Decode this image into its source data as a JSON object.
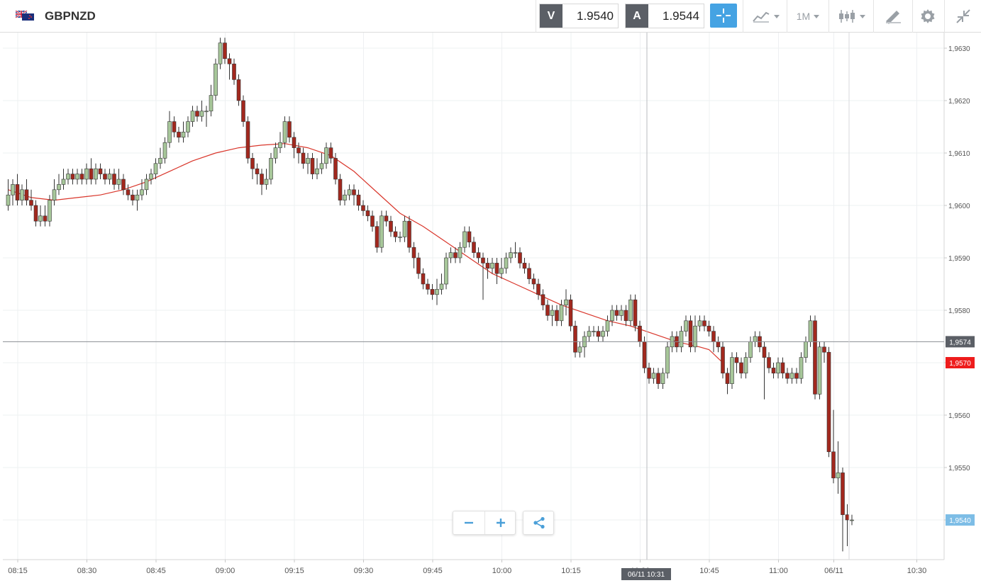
{
  "header": {
    "symbol": "GBPNZD",
    "sell_tag": "V",
    "sell_price": "1.9540",
    "buy_tag": "A",
    "buy_price": "1.9544",
    "timeframe": "1M",
    "icons": [
      "gb-nz-flag-icon",
      "crosshair-icon",
      "indicators-icon",
      "timeframe-caret-icon",
      "candlestick-type-icon",
      "draw-tools-icon",
      "settings-icon",
      "fullscreen-icon"
    ]
  },
  "controls": {
    "icons": [
      "zoom-out-icon",
      "zoom-in-icon",
      "share-icon"
    ]
  },
  "colors": {
    "up_body": "#a7c79a",
    "down_body": "#a2281e",
    "wick": "#333333",
    "ma_line": "#d9362b",
    "crosshair_label_bg": "#5b5f66",
    "ma_label_bg": "#ee1c1c",
    "last_price_label_bg": "#7dbde6",
    "accent": "#45a3e3"
  },
  "chart_data": {
    "type": "candlestick",
    "x_tick_labels": [
      "08:15",
      "08:30",
      "08:45",
      "09:00",
      "09:15",
      "09:30",
      "09:45",
      "10:00",
      "10:15",
      "10:30",
      "10:45",
      "11:00",
      "06/11",
      "10:30"
    ],
    "x_tick_minutes": [
      495,
      510,
      525,
      540,
      555,
      570,
      585,
      600,
      615,
      630,
      645,
      660,
      672,
      690
    ],
    "y_tick_labels": [
      "1,9630",
      "1,9620",
      "1,9610",
      "1,9600",
      "1,9590",
      "1,9580",
      "1,9570",
      "1,9560",
      "1,9550",
      "1,9540"
    ],
    "y_ticks": [
      1.963,
      1.962,
      1.961,
      1.96,
      1.959,
      1.958,
      1.957,
      1.956,
      1.955,
      1.954
    ],
    "ylim": [
      1.9533,
      1.9639
    ],
    "crosshair": {
      "price": 1.9574,
      "price_label": "1,9574",
      "time_label": "06/11 10:31"
    },
    "ma_label": {
      "price": 1.957,
      "text": "1,9570"
    },
    "last_price_label": {
      "price": 1.954,
      "text": "1,9540"
    },
    "ma_series": [
      [
        0,
        1.9603
      ],
      [
        5,
        1.96015
      ],
      [
        10,
        1.9601
      ],
      [
        15,
        1.96015
      ],
      [
        20,
        1.9602
      ],
      [
        25,
        1.9603
      ],
      [
        30,
        1.96045
      ],
      [
        35,
        1.96065
      ],
      [
        40,
        1.96085
      ],
      [
        45,
        1.961
      ],
      [
        50,
        1.9611
      ],
      [
        55,
        1.96115
      ],
      [
        60,
        1.96118
      ],
      [
        65,
        1.9611
      ],
      [
        70,
        1.96095
      ],
      [
        75,
        1.96065
      ],
      [
        80,
        1.96025
      ],
      [
        85,
        1.95985
      ],
      [
        90,
        1.9596
      ],
      [
        95,
        1.9593
      ],
      [
        100,
        1.959
      ],
      [
        105,
        1.9587
      ],
      [
        110,
        1.9585
      ],
      [
        115,
        1.9583
      ],
      [
        120,
        1.9581
      ],
      [
        125,
        1.95795
      ],
      [
        130,
        1.9578
      ],
      [
        135,
        1.9577
      ],
      [
        140,
        1.95755
      ],
      [
        145,
        1.9574
      ],
      [
        150,
        1.9573
      ],
      [
        152,
        1.95725
      ],
      [
        155,
        1.957
      ]
    ],
    "candles": [
      [
        1.96,
        1.9602,
        1.9605,
        1.9599
      ],
      [
        1.9602,
        1.9604,
        1.9605,
        1.96
      ],
      [
        1.9604,
        1.9601,
        1.9606,
        1.96
      ],
      [
        1.9601,
        1.9603,
        1.9604,
        1.96
      ],
      [
        1.9603,
        1.9601,
        1.9605,
        1.96
      ],
      [
        1.9601,
        1.96,
        1.9603,
        1.9599
      ],
      [
        1.96,
        1.9597,
        1.9601,
        1.9596
      ],
      [
        1.9597,
        1.9598,
        1.96,
        1.9596
      ],
      [
        1.9598,
        1.9597,
        1.96,
        1.9596
      ],
      [
        1.9597,
        1.9601,
        1.9602,
        1.9596
      ],
      [
        1.9601,
        1.9603,
        1.9605,
        1.96
      ],
      [
        1.9603,
        1.9604,
        1.9606,
        1.9602
      ],
      [
        1.9604,
        1.9605,
        1.9607,
        1.9603
      ],
      [
        1.9605,
        1.9606,
        1.9607,
        1.9604
      ],
      [
        1.9606,
        1.9605,
        1.9607,
        1.9604
      ],
      [
        1.9605,
        1.9606,
        1.9607,
        1.9604
      ],
      [
        1.9606,
        1.9605,
        1.9607,
        1.9604
      ],
      [
        1.9605,
        1.9607,
        1.9608,
        1.9604
      ],
      [
        1.9607,
        1.9605,
        1.9609,
        1.9604
      ],
      [
        1.9605,
        1.9607,
        1.9608,
        1.9604
      ],
      [
        1.9607,
        1.9606,
        1.9608,
        1.9605
      ],
      [
        1.9606,
        1.9605,
        1.9607,
        1.9604
      ],
      [
        1.9605,
        1.9606,
        1.9607,
        1.9604
      ],
      [
        1.9606,
        1.9604,
        1.9607,
        1.9603
      ],
      [
        1.9604,
        1.9605,
        1.9607,
        1.9603
      ],
      [
        1.9605,
        1.9603,
        1.9606,
        1.9602
      ],
      [
        1.9603,
        1.9602,
        1.9604,
        1.9601
      ],
      [
        1.9602,
        1.9601,
        1.9603,
        1.96
      ],
      [
        1.9601,
        1.9602,
        1.9603,
        1.9599
      ],
      [
        1.9602,
        1.9603,
        1.9605,
        1.9601
      ],
      [
        1.9603,
        1.9605,
        1.9606,
        1.9602
      ],
      [
        1.9605,
        1.9606,
        1.9607,
        1.9604
      ],
      [
        1.9606,
        1.9608,
        1.9609,
        1.9605
      ],
      [
        1.9608,
        1.9609,
        1.9611,
        1.9607
      ],
      [
        1.9609,
        1.9612,
        1.9613,
        1.9608
      ],
      [
        1.9612,
        1.9616,
        1.9618,
        1.9611
      ],
      [
        1.9616,
        1.9614,
        1.9617,
        1.9613
      ],
      [
        1.9614,
        1.9613,
        1.9615,
        1.9612
      ],
      [
        1.9613,
        1.9614,
        1.9616,
        1.9612
      ],
      [
        1.9614,
        1.9616,
        1.9617,
        1.9613
      ],
      [
        1.9616,
        1.9618,
        1.9619,
        1.9615
      ],
      [
        1.9618,
        1.9617,
        1.9619,
        1.9616
      ],
      [
        1.9617,
        1.9618,
        1.962,
        1.9616
      ],
      [
        1.9618,
        1.9618,
        1.9619,
        1.9615
      ],
      [
        1.9618,
        1.9621,
        1.9623,
        1.9617
      ],
      [
        1.9621,
        1.9627,
        1.9628,
        1.962
      ],
      [
        1.9627,
        1.9631,
        1.9632,
        1.9626
      ],
      [
        1.9631,
        1.9628,
        1.9632,
        1.9627
      ],
      [
        1.9628,
        1.9627,
        1.9629,
        1.9624
      ],
      [
        1.9627,
        1.9624,
        1.9628,
        1.9623
      ],
      [
        1.9624,
        1.962,
        1.9625,
        1.9619
      ],
      [
        1.962,
        1.9616,
        1.9621,
        1.9615
      ],
      [
        1.9616,
        1.9609,
        1.9617,
        1.9608
      ],
      [
        1.9609,
        1.9607,
        1.961,
        1.9605
      ],
      [
        1.9607,
        1.9606,
        1.9608,
        1.9604
      ],
      [
        1.9606,
        1.9604,
        1.9607,
        1.9602
      ],
      [
        1.9604,
        1.9605,
        1.9607,
        1.9603
      ],
      [
        1.9605,
        1.9609,
        1.961,
        1.9604
      ],
      [
        1.9609,
        1.9611,
        1.9612,
        1.9608
      ],
      [
        1.9611,
        1.9612,
        1.9614,
        1.961
      ],
      [
        1.9612,
        1.9616,
        1.9617,
        1.9611
      ],
      [
        1.9616,
        1.9613,
        1.9617,
        1.9612
      ],
      [
        1.9613,
        1.9611,
        1.9614,
        1.9609
      ],
      [
        1.9611,
        1.961,
        1.9612,
        1.9608
      ],
      [
        1.961,
        1.9608,
        1.9611,
        1.9607
      ],
      [
        1.9608,
        1.9609,
        1.961,
        1.9606
      ],
      [
        1.9609,
        1.9606,
        1.961,
        1.9605
      ],
      [
        1.9606,
        1.9607,
        1.9609,
        1.9605
      ],
      [
        1.9607,
        1.9608,
        1.961,
        1.9606
      ],
      [
        1.9608,
        1.9611,
        1.9612,
        1.9607
      ],
      [
        1.9611,
        1.9609,
        1.9612,
        1.9608
      ],
      [
        1.9609,
        1.9605,
        1.961,
        1.9604
      ],
      [
        1.9605,
        1.9601,
        1.9606,
        1.96
      ],
      [
        1.9601,
        1.9602,
        1.9603,
        1.96
      ],
      [
        1.9602,
        1.9603,
        1.9604,
        1.9601
      ],
      [
        1.9603,
        1.9602,
        1.9604,
        1.96
      ],
      [
        1.9602,
        1.96,
        1.9603,
        1.9599
      ],
      [
        1.96,
        1.9599,
        1.9601,
        1.9598
      ],
      [
        1.9599,
        1.9598,
        1.96,
        1.9597
      ],
      [
        1.9598,
        1.9596,
        1.9599,
        1.9595
      ],
      [
        1.9596,
        1.9592,
        1.9597,
        1.9591
      ],
      [
        1.9592,
        1.9598,
        1.9599,
        1.9591
      ],
      [
        1.9598,
        1.9597,
        1.9599,
        1.9596
      ],
      [
        1.9597,
        1.9595,
        1.9598,
        1.9594
      ],
      [
        1.9595,
        1.9594,
        1.9596,
        1.9593
      ],
      [
        1.9594,
        1.9594,
        1.9595,
        1.9593
      ],
      [
        1.9594,
        1.9597,
        1.9598,
        1.9593
      ],
      [
        1.9597,
        1.9592,
        1.9598,
        1.9591
      ],
      [
        1.9592,
        1.959,
        1.9593,
        1.9588
      ],
      [
        1.959,
        1.9587,
        1.9591,
        1.9586
      ],
      [
        1.9587,
        1.9585,
        1.9588,
        1.9584
      ],
      [
        1.9585,
        1.9584,
        1.9586,
        1.9583
      ],
      [
        1.9584,
        1.9583,
        1.9585,
        1.9582
      ],
      [
        1.9583,
        1.9584,
        1.9586,
        1.9581
      ],
      [
        1.9584,
        1.9585,
        1.9587,
        1.9583
      ],
      [
        1.9585,
        1.959,
        1.9591,
        1.9584
      ],
      [
        1.959,
        1.9591,
        1.9592,
        1.9589
      ],
      [
        1.9591,
        1.959,
        1.9592,
        1.9589
      ],
      [
        1.959,
        1.9592,
        1.9593,
        1.9589
      ],
      [
        1.9592,
        1.9595,
        1.9596,
        1.9591
      ],
      [
        1.9595,
        1.9593,
        1.9596,
        1.9592
      ],
      [
        1.9593,
        1.9591,
        1.9594,
        1.959
      ],
      [
        1.9591,
        1.959,
        1.9592,
        1.9589
      ],
      [
        1.959,
        1.9589,
        1.9591,
        1.9582
      ],
      [
        1.9589,
        1.9588,
        1.959,
        1.9586
      ],
      [
        1.9588,
        1.9589,
        1.959,
        1.9587
      ],
      [
        1.9589,
        1.9587,
        1.959,
        1.9585
      ],
      [
        1.9587,
        1.9588,
        1.959,
        1.9586
      ],
      [
        1.9588,
        1.959,
        1.9591,
        1.9587
      ],
      [
        1.959,
        1.9591,
        1.9592,
        1.9589
      ],
      [
        1.9591,
        1.9591,
        1.9593,
        1.959
      ],
      [
        1.9591,
        1.9589,
        1.9592,
        1.9588
      ],
      [
        1.9589,
        1.9588,
        1.959,
        1.9587
      ],
      [
        1.9588,
        1.9586,
        1.9589,
        1.9585
      ],
      [
        1.9586,
        1.9585,
        1.9587,
        1.9584
      ],
      [
        1.9585,
        1.9583,
        1.9586,
        1.9582
      ],
      [
        1.9583,
        1.9581,
        1.9584,
        1.958
      ],
      [
        1.9581,
        1.9579,
        1.9582,
        1.9578
      ],
      [
        1.9579,
        1.958,
        1.9581,
        1.9577
      ],
      [
        1.958,
        1.9578,
        1.9581,
        1.9577
      ],
      [
        1.9578,
        1.9581,
        1.9582,
        1.9577
      ],
      [
        1.9581,
        1.9582,
        1.9584,
        1.9579
      ],
      [
        1.9582,
        1.9577,
        1.9583,
        1.9576
      ],
      [
        1.9577,
        1.9572,
        1.9578,
        1.9571
      ],
      [
        1.9572,
        1.9573,
        1.9574,
        1.9571
      ],
      [
        1.9573,
        1.9575,
        1.9576,
        1.9571
      ],
      [
        1.9575,
        1.9576,
        1.9577,
        1.9574
      ],
      [
        1.9576,
        1.9576,
        1.9577,
        1.9575
      ],
      [
        1.9576,
        1.9575,
        1.9577,
        1.9574
      ],
      [
        1.9575,
        1.9576,
        1.9577,
        1.9574
      ],
      [
        1.9576,
        1.9578,
        1.9579,
        1.9575
      ],
      [
        1.9578,
        1.958,
        1.9581,
        1.9577
      ],
      [
        1.958,
        1.9579,
        1.9581,
        1.9578
      ],
      [
        1.9579,
        1.958,
        1.9581,
        1.9578
      ],
      [
        1.958,
        1.9578,
        1.9581,
        1.9577
      ],
      [
        1.9578,
        1.9582,
        1.9583,
        1.9577
      ],
      [
        1.9582,
        1.9577,
        1.9583,
        1.9576
      ],
      [
        1.9577,
        1.9574,
        1.9578,
        1.9573
      ],
      [
        1.9574,
        1.9569,
        1.9575,
        1.9568
      ],
      [
        1.9569,
        1.9567,
        1.957,
        1.9566
      ],
      [
        1.9567,
        1.9568,
        1.9569,
        1.9566
      ],
      [
        1.9568,
        1.9566,
        1.9569,
        1.9565
      ],
      [
        1.9566,
        1.9568,
        1.9569,
        1.9565
      ],
      [
        1.9568,
        1.9573,
        1.9574,
        1.9567
      ],
      [
        1.9573,
        1.9575,
        1.9576,
        1.9572
      ],
      [
        1.9575,
        1.9573,
        1.9576,
        1.9572
      ],
      [
        1.9573,
        1.9576,
        1.9577,
        1.9572
      ],
      [
        1.9576,
        1.9578,
        1.9579,
        1.9575
      ],
      [
        1.9578,
        1.9573,
        1.9579,
        1.9572
      ],
      [
        1.9573,
        1.9577,
        1.9579,
        1.9572
      ],
      [
        1.9577,
        1.9578,
        1.9579,
        1.9576
      ],
      [
        1.9578,
        1.9577,
        1.9579,
        1.9576
      ],
      [
        1.9577,
        1.9576,
        1.9578,
        1.9575
      ],
      [
        1.9576,
        1.9574,
        1.9577,
        1.9572
      ],
      [
        1.9574,
        1.9573,
        1.9575,
        1.9572
      ],
      [
        1.9573,
        1.9568,
        1.9574,
        1.9567
      ],
      [
        1.9568,
        1.9566,
        1.9569,
        1.9564
      ],
      [
        1.9566,
        1.9571,
        1.9572,
        1.9565
      ],
      [
        1.9571,
        1.957,
        1.9572,
        1.9568
      ],
      [
        1.957,
        1.9568,
        1.9571,
        1.9567
      ],
      [
        1.9568,
        1.9571,
        1.9572,
        1.9567
      ],
      [
        1.9571,
        1.9574,
        1.9575,
        1.957
      ],
      [
        1.9574,
        1.9575,
        1.9576,
        1.9573
      ],
      [
        1.9575,
        1.9573,
        1.9576,
        1.9572
      ],
      [
        1.9573,
        1.9571,
        1.9574,
        1.9563
      ],
      [
        1.9571,
        1.9569,
        1.9572,
        1.9568
      ],
      [
        1.9569,
        1.9568,
        1.957,
        1.9567
      ],
      [
        1.9568,
        1.957,
        1.9571,
        1.9567
      ],
      [
        1.957,
        1.9568,
        1.9571,
        1.9567
      ],
      [
        1.9568,
        1.9567,
        1.9569,
        1.9566
      ],
      [
        1.9567,
        1.9568,
        1.9569,
        1.9566
      ],
      [
        1.9568,
        1.9567,
        1.9569,
        1.9566
      ],
      [
        1.9567,
        1.9571,
        1.9572,
        1.9566
      ],
      [
        1.9571,
        1.9574,
        1.9575,
        1.957
      ],
      [
        1.9574,
        1.9578,
        1.9579,
        1.9573
      ],
      [
        1.9578,
        1.9564,
        1.9579,
        1.9563
      ],
      [
        1.9564,
        1.9573,
        1.9574,
        1.9563
      ],
      [
        1.9573,
        1.9572,
        1.9574,
        1.957
      ],
      [
        1.9572,
        1.9553,
        1.9573,
        1.9552
      ],
      [
        1.9553,
        1.9548,
        1.9561,
        1.9547
      ],
      [
        1.9548,
        1.9549,
        1.9555,
        1.9545
      ],
      [
        1.9549,
        1.9541,
        1.955,
        1.9534
      ],
      [
        1.9541,
        1.954,
        1.9543,
        1.9535
      ],
      [
        1.954,
        1.954,
        1.9541,
        1.9539
      ]
    ]
  }
}
